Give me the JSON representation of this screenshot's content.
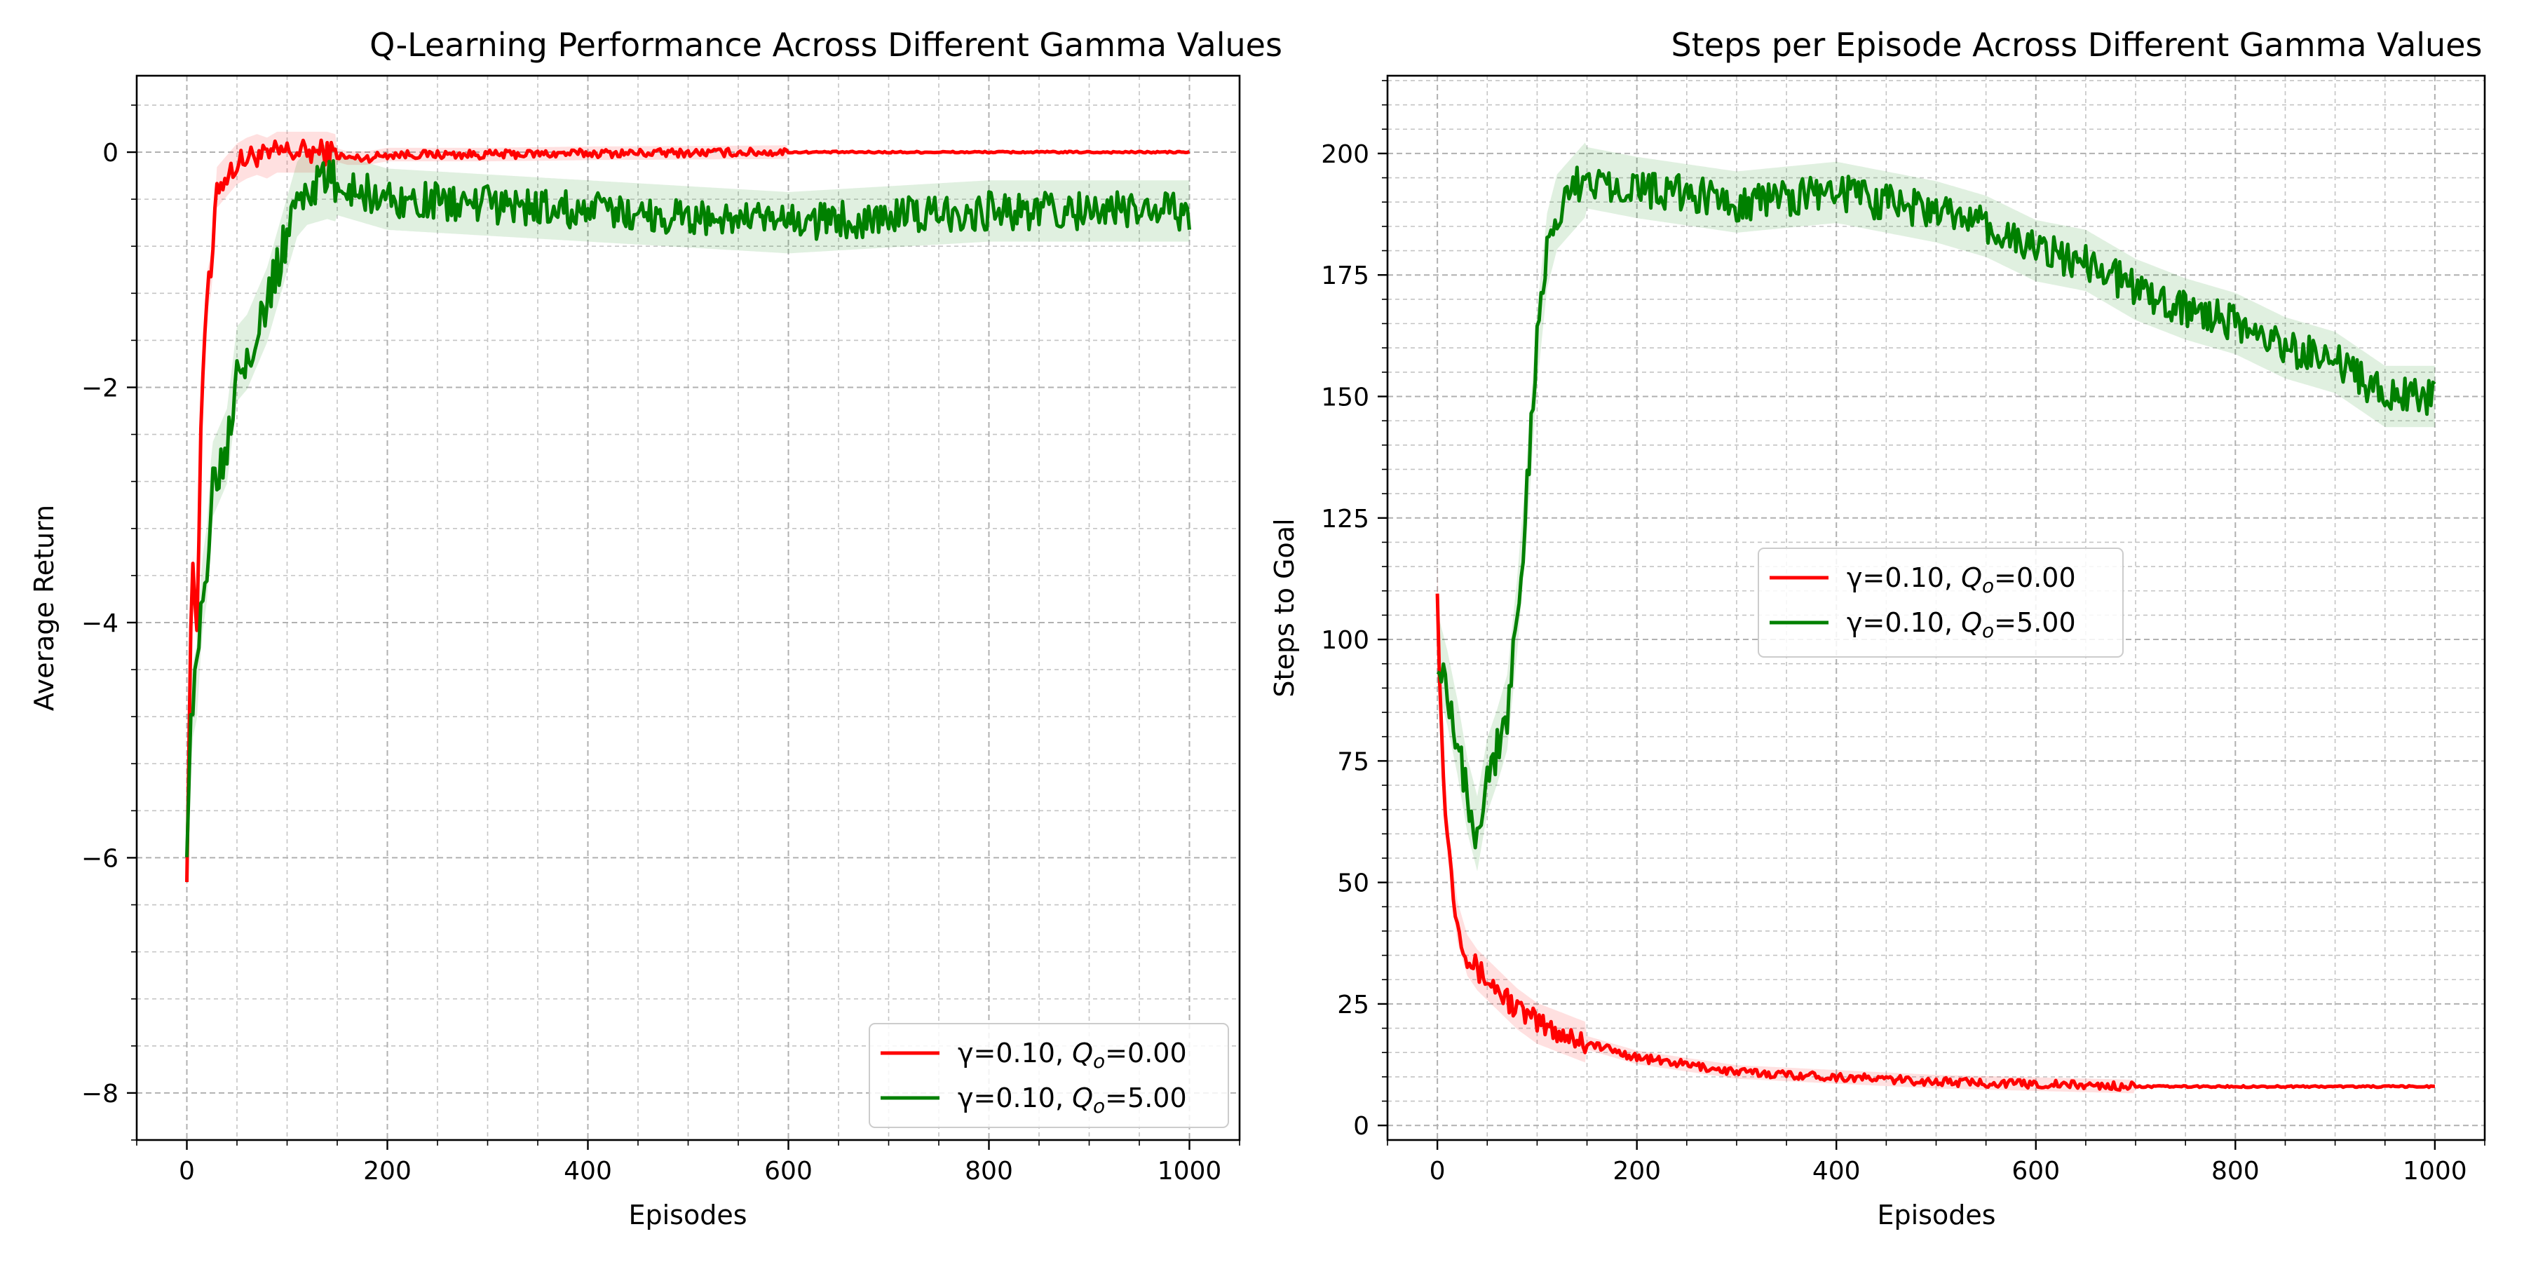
{
  "chart_data": [
    {
      "type": "line",
      "title": "Q-Learning Performance Across Different Gamma Values",
      "xlabel": "Episodes",
      "ylabel": "Average Return",
      "xlim": [
        -50,
        1050
      ],
      "ylim": [
        -8.4,
        0.65
      ],
      "xticks": [
        0,
        200,
        400,
        600,
        800,
        1000
      ],
      "yticks": [
        -8,
        -6,
        -4,
        -2,
        0
      ],
      "grid": true,
      "minor_grid": true,
      "legend_position": "lower-right",
      "series": [
        {
          "name": "γ=0.10, Q_o=0.00",
          "name_main": "γ=0.10, ",
          "name_sym": "Q",
          "name_sub": "o",
          "name_rest": "=0.00",
          "color": "#ff0000",
          "x": [
            0,
            5,
            10,
            15,
            20,
            25,
            30,
            40,
            50,
            60,
            70,
            80,
            90,
            100,
            120,
            140,
            160,
            180,
            200,
            300,
            400,
            600,
            800,
            1000
          ],
          "y": [
            -6.1,
            -3.5,
            -4.0,
            -2.0,
            -1.2,
            -1.0,
            -0.3,
            -0.2,
            -0.1,
            -0.05,
            -0.02,
            -0.05,
            0.0,
            0.0,
            0.0,
            0.0,
            -0.05,
            -0.05,
            -0.02,
            -0.02,
            -0.01,
            0.0,
            0.0,
            0.0
          ]
        },
        {
          "name": "γ=0.10, Q_o=5.00",
          "name_main": "γ=0.10, ",
          "name_sym": "Q",
          "name_sub": "o",
          "name_rest": "=5.00",
          "color": "#008000",
          "x": [
            0,
            5,
            10,
            15,
            20,
            25,
            30,
            40,
            50,
            60,
            70,
            80,
            90,
            100,
            110,
            120,
            140,
            160,
            180,
            200,
            300,
            400,
            500,
            600,
            700,
            800,
            900,
            1000
          ],
          "y": [
            -5.8,
            -4.7,
            -4.5,
            -3.8,
            -3.5,
            -2.8,
            -2.7,
            -2.5,
            -1.8,
            -1.7,
            -1.5,
            -1.3,
            -1.0,
            -0.7,
            -0.4,
            -0.3,
            -0.25,
            -0.3,
            -0.35,
            -0.4,
            -0.45,
            -0.5,
            -0.55,
            -0.6,
            -0.55,
            -0.5,
            -0.5,
            -0.5
          ]
        }
      ]
    },
    {
      "type": "line",
      "title": "Steps per Episode Across Different Gamma Values",
      "xlabel": "Episodes",
      "ylabel": "Steps to Goal",
      "xlim": [
        -50,
        1050
      ],
      "ylim": [
        -3,
        216
      ],
      "xticks": [
        0,
        200,
        400,
        600,
        800,
        1000
      ],
      "yticks": [
        0,
        25,
        50,
        75,
        100,
        125,
        150,
        175,
        200
      ],
      "grid": true,
      "minor_grid": true,
      "legend_position": "center",
      "series": [
        {
          "name": "γ=0.10,  Q_o=0.00",
          "name_main": "γ=0.10,  ",
          "name_sym": "Q",
          "name_sub": "o",
          "name_rest": "=0.00",
          "color": "#ff0000",
          "x": [
            0,
            2,
            5,
            10,
            15,
            20,
            30,
            40,
            50,
            60,
            80,
            100,
            150,
            200,
            300,
            400,
            500,
            600,
            700,
            800,
            900,
            1000
          ],
          "y": [
            112,
            95,
            75,
            60,
            50,
            42,
            35,
            32,
            30,
            28,
            24,
            21,
            17,
            14,
            11,
            10,
            9,
            8.5,
            8,
            8,
            8,
            8
          ]
        },
        {
          "name": "γ=0.10,  Q_o=5.00",
          "name_main": "γ=0.10,  ",
          "name_sym": "Q",
          "name_sub": "o",
          "name_rest": "=5.00",
          "color": "#008000",
          "x": [
            0,
            10,
            20,
            30,
            40,
            50,
            60,
            70,
            80,
            90,
            100,
            110,
            120,
            150,
            200,
            300,
            400,
            500,
            550,
            600,
            650,
            700,
            750,
            800,
            850,
            900,
            950,
            1000
          ],
          "y": [
            98,
            90,
            80,
            68,
            60,
            72,
            78,
            85,
            105,
            130,
            160,
            180,
            188,
            195,
            193,
            190,
            192,
            188,
            185,
            180,
            178,
            172,
            168,
            165,
            160,
            157,
            150,
            150
          ]
        }
      ]
    }
  ]
}
